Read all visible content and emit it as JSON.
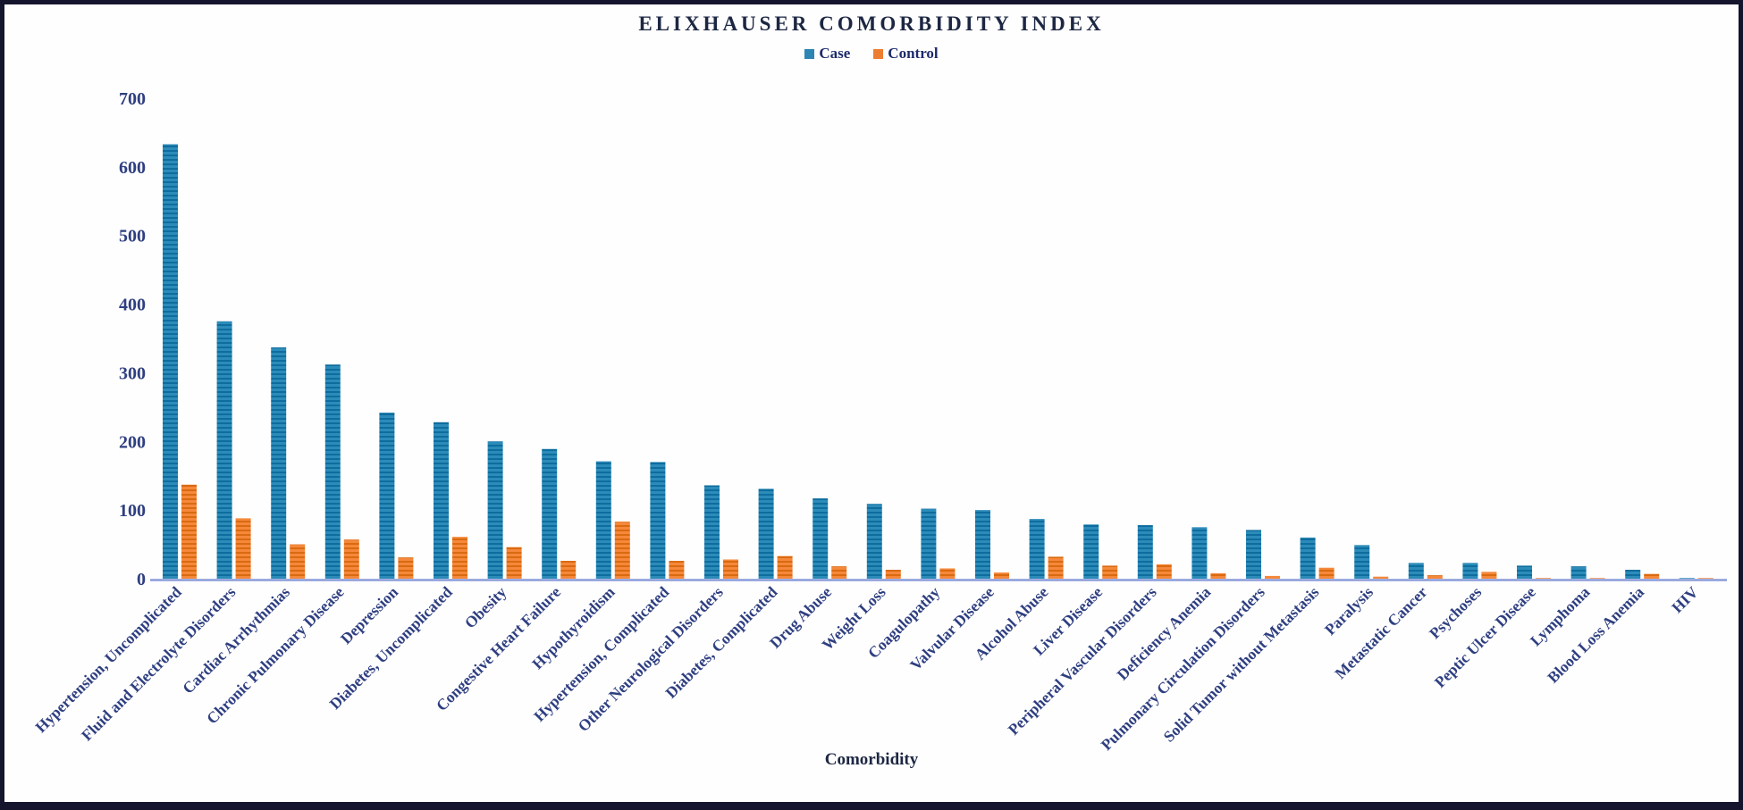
{
  "chart_data": {
    "type": "bar",
    "title": "ELIXHAUSER COMORBIDITY INDEX",
    "xlabel": "Comorbidity",
    "ylabel": "",
    "ylim": [
      0,
      700
    ],
    "yticks": [
      0,
      100,
      200,
      300,
      400,
      500,
      600,
      700
    ],
    "grid": false,
    "legend_position": "top-center",
    "bar_texture": "horizontal-stripes",
    "categories": [
      "Hypertension, Uncomplicated",
      "Fluid and Electrolyte Disorders",
      "Cardiac Arrhythmias",
      "Chronic Pulmonary Disease",
      "Depression",
      "Diabetes, Uncomplicated",
      "Obesity",
      "Congestive Heart Failure",
      "Hypothyroidism",
      "Hypertension, Complicated",
      "Other Neurological Disorders",
      "Diabetes, Complicated",
      "Drug Abuse",
      "Weight Loss",
      "Coagulopathy",
      "Valvular Disease",
      "Alcohol Abuse",
      "Liver Disease",
      "Peripheral Vascular Disorders",
      "Deficiency Anemia",
      "Pulmonary Circulation Disorders",
      "Solid Tumor without Metastasis",
      "Paralysis",
      "Metastatic Cancer",
      "Psychoses",
      "Peptic Ulcer Disease",
      "Lymphoma",
      "Blood Loss Anemia",
      "HIV"
    ],
    "series": [
      {
        "name": "Case",
        "color": "#2c8bb8",
        "stripe_color": "#0d6d9e",
        "values": [
          633,
          375,
          337,
          312,
          242,
          228,
          200,
          189,
          171,
          170,
          136,
          131,
          117,
          109,
          102,
          100,
          87,
          79,
          78,
          75,
          71,
          60,
          49,
          23,
          23,
          19,
          18,
          13,
          1
        ]
      },
      {
        "name": "Control",
        "color": "#f5883a",
        "stripe_color": "#d96a10",
        "values": [
          137,
          88,
          50,
          57,
          31,
          61,
          46,
          26,
          83,
          26,
          28,
          33,
          18,
          13,
          15,
          9,
          32,
          19,
          21,
          8,
          4,
          16,
          3,
          5,
          10,
          1,
          1,
          7,
          1
        ]
      }
    ]
  },
  "colors": {
    "axis_text": "#2e3f80",
    "title_text": "#1c2742",
    "axis_line": "#8a9bd8",
    "frame_border": "#15152e",
    "background": "#ffffff",
    "legend_case_chip": "#2c85b2",
    "legend_control_chip": "#ed7d31"
  }
}
